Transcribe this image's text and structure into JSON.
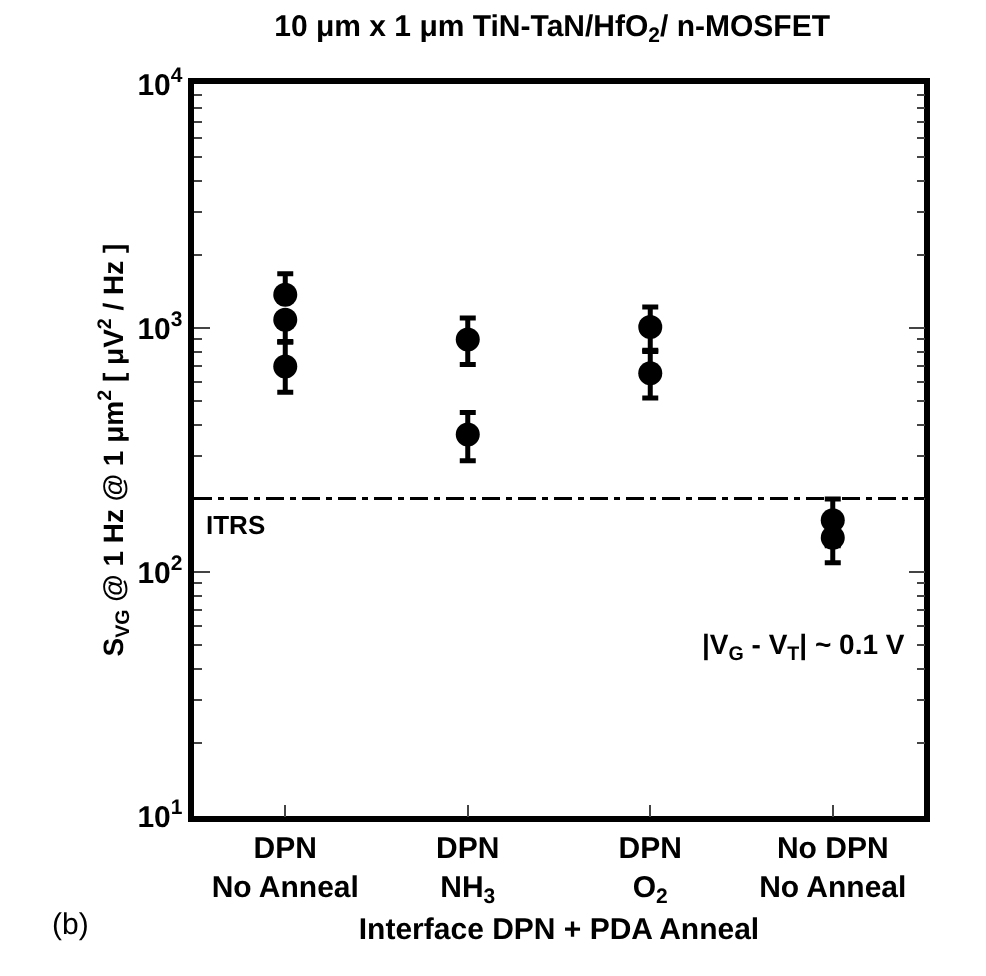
{
  "chart_data": {
    "type": "scatter",
    "title": "10 μm x 1 μm TiN-TaN/HfO$_{2}$/ n-MOSFET",
    "xlabel": "Interface DPN + PDA Anneal",
    "ylabel": "S$_{VG}$ @ 1 Hz @ 1 μm$^{2}$ [ μV$^{2}$ / Hz ]",
    "categories": [
      "DPN\nNo Anneal",
      "DPN\nNH$_{3}$",
      "DPN\nO$_{2}$",
      "No DPN\nNo Anneal"
    ],
    "series": [
      {
        "color": "#000000",
        "x": [
          "DPN\nNo Anneal",
          "DPN\nNo Anneal",
          "DPN\nNo Anneal",
          "DPN\nNH$_{3}$",
          "DPN\nNH$_{3}$",
          "DPN\nO$_{2}$",
          "DPN\nO$_{2}$",
          "No DPN\nNo Anneal",
          "No DPN\nNo Anneal"
        ],
        "values": [
          1370,
          1080,
          695,
          898,
          366,
          1010,
          652,
          163,
          138
        ],
        "errors": [
          [
            1370,
            1670
          ],
          [
            880,
            1080
          ],
          [
            545,
            875
          ],
          [
            708,
            1098
          ],
          [
            286,
            451
          ],
          [
            810,
            1220
          ],
          [
            517,
            802
          ],
          [
            128,
            199
          ],
          [
            109,
            138
          ]
        ]
      }
    ],
    "log": true,
    "ylim": [
      10,
      10000
    ],
    "yticks": [
      {
        "value": 10,
        "label": "10$^{1}$"
      },
      {
        "value": 100,
        "label": "10$^{2}$"
      },
      {
        "value": 1000,
        "label": "10$^{3}$"
      },
      {
        "value": 10000,
        "label": "10$^{4}$"
      }
    ],
    "grid": false,
    "marker": "circle",
    "ref_lines": [
      {
        "axis": "y",
        "value": 200,
        "label": "ITRS",
        "color": "#000000",
        "line_style": "dashdot"
      }
    ],
    "annotations": [
      "|V$_{G}$ - V$_{T}$| ~ 0.1 V",
      "(b)"
    ]
  }
}
